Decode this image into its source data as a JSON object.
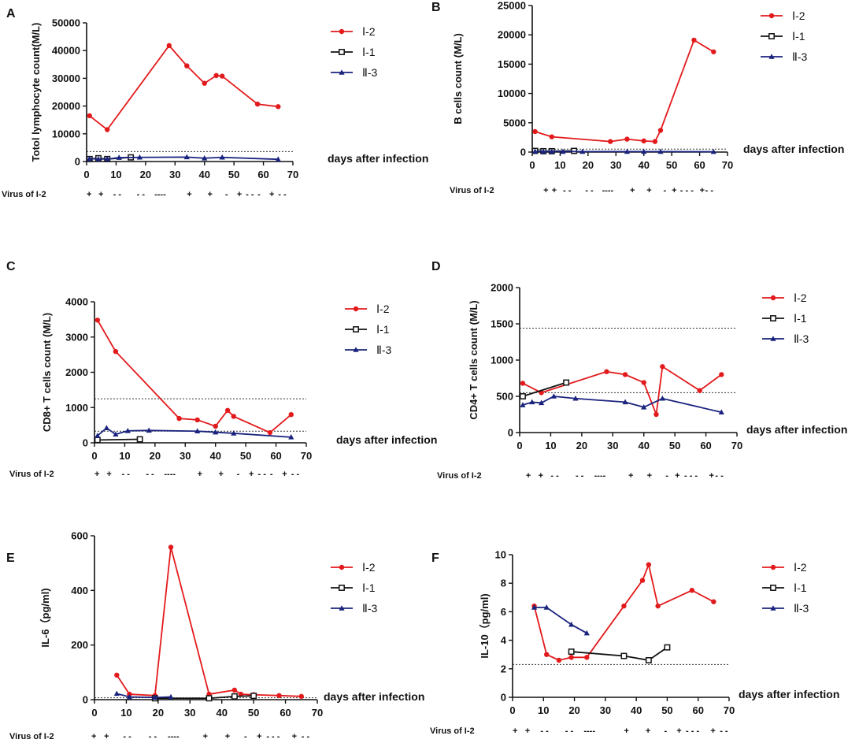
{
  "chart_data": [
    {
      "id": "A",
      "type": "line",
      "letter": "A",
      "ylabel": "Totol lymphocyte count(M/L)",
      "xlabel": "days after infection",
      "xlim": [
        0,
        70
      ],
      "ylim": [
        0,
        50000
      ],
      "xticks": [
        0,
        10,
        20,
        30,
        40,
        50,
        60,
        70
      ],
      "yticks": [
        0,
        10000,
        20000,
        30000,
        40000,
        50000
      ],
      "ytick_labels": [
        "0",
        "10000",
        "20000",
        "30000",
        "40000",
        "50000"
      ],
      "reference_lines": [
        3600
      ],
      "virus_label": "Virus of I-2",
      "virus_marks": [
        {
          "day": 0,
          "text": "+"
        },
        {
          "day": 4,
          "text": "+"
        },
        {
          "day": 9,
          "text": "- -"
        },
        {
          "day": 17,
          "text": "- -"
        },
        {
          "day": 23,
          "text": "----"
        },
        {
          "day": 34,
          "text": "+"
        },
        {
          "day": 41,
          "text": "+"
        },
        {
          "day": 47,
          "text": "-"
        },
        {
          "day": 51,
          "text": "+"
        },
        {
          "day": 54,
          "text": "- -"
        },
        {
          "day": 58,
          "text": "-"
        },
        {
          "day": 62,
          "text": "+"
        },
        {
          "day": 65,
          "text": "- -"
        }
      ],
      "series": [
        {
          "name": "Ⅰ-2",
          "color": "#e31a1c",
          "marker": "circle",
          "x": [
            1,
            7,
            28,
            34,
            40,
            44,
            46,
            58,
            65
          ],
          "y": [
            16500,
            11500,
            41800,
            34500,
            28200,
            31000,
            30800,
            20700,
            19800
          ]
        },
        {
          "name": "Ⅰ-1",
          "color": "#111111",
          "marker": "square",
          "x": [
            1,
            4,
            7,
            15
          ],
          "y": [
            900,
            1200,
            900,
            1500
          ]
        },
        {
          "name": "Ⅱ-3",
          "color": "#1a237e",
          "marker": "triangle",
          "x": [
            1,
            4,
            7,
            11,
            18,
            34,
            40,
            46,
            65
          ],
          "y": [
            1000,
            900,
            900,
            1400,
            1500,
            1600,
            1200,
            1500,
            800
          ]
        }
      ]
    },
    {
      "id": "B",
      "type": "line",
      "letter": "B",
      "ylabel": "B cells count  (M/L)",
      "xlabel": "days after infection",
      "xlim": [
        0,
        70
      ],
      "ylim": [
        0,
        25000
      ],
      "xticks": [
        0,
        10,
        20,
        30,
        40,
        50,
        60,
        70
      ],
      "yticks": [
        0,
        5000,
        10000,
        15000,
        20000,
        25000
      ],
      "ytick_labels": [
        "0",
        "5000",
        "10000",
        "15000",
        "20000",
        "25000"
      ],
      "reference_lines": [
        500
      ],
      "virus_label": "Virus of I-2",
      "virus_marks": [
        {
          "day": 4,
          "text": "+"
        },
        {
          "day": 7,
          "text": "+"
        },
        {
          "day": 11,
          "text": "- -"
        },
        {
          "day": 19,
          "text": "- -"
        },
        {
          "day": 25,
          "text": "----"
        },
        {
          "day": 35,
          "text": "+"
        },
        {
          "day": 41,
          "text": "+"
        },
        {
          "day": 47,
          "text": "-"
        },
        {
          "day": 50,
          "text": "+"
        },
        {
          "day": 53,
          "text": "- - -"
        },
        {
          "day": 60,
          "text": "+"
        },
        {
          "day": 62,
          "text": "- -"
        }
      ],
      "series": [
        {
          "name": "Ⅰ-2",
          "color": "#e31a1c",
          "marker": "circle",
          "x": [
            1,
            7,
            28,
            34,
            40,
            44,
            46,
            58,
            65
          ],
          "y": [
            3500,
            2600,
            1800,
            2200,
            1900,
            1800,
            3700,
            19100,
            17100
          ]
        },
        {
          "name": "Ⅰ-1",
          "color": "#111111",
          "marker": "square",
          "x": [
            1,
            4,
            7,
            15
          ],
          "y": [
            200,
            150,
            150,
            200
          ]
        },
        {
          "name": "Ⅱ-3",
          "color": "#1a237e",
          "marker": "triangle",
          "x": [
            1,
            4,
            7,
            11,
            18,
            34,
            40,
            46,
            65
          ],
          "y": [
            100,
            100,
            100,
            80,
            80,
            80,
            80,
            80,
            50
          ]
        }
      ]
    },
    {
      "id": "C",
      "type": "line",
      "letter": "C",
      "ylabel": "CD8+ T cells count (M/L)",
      "xlabel": "days after infection",
      "xlim": [
        0,
        70
      ],
      "ylim": [
        0,
        4000
      ],
      "xticks": [
        0,
        10,
        20,
        30,
        40,
        50,
        60,
        70
      ],
      "yticks": [
        0,
        1000,
        2000,
        3000,
        4000
      ],
      "ytick_labels": [
        "0",
        "1000",
        "2000",
        "3000",
        "4000"
      ],
      "reference_lines": [
        1250,
        330
      ],
      "virus_label": "Virus of I-2",
      "virus_marks": [
        {
          "day": 0,
          "text": "+"
        },
        {
          "day": 4,
          "text": "+"
        },
        {
          "day": 9,
          "text": "- -"
        },
        {
          "day": 17,
          "text": "- -"
        },
        {
          "day": 23,
          "text": "----"
        },
        {
          "day": 34,
          "text": "+"
        },
        {
          "day": 41,
          "text": "+"
        },
        {
          "day": 47,
          "text": "-"
        },
        {
          "day": 51,
          "text": "+"
        },
        {
          "day": 54,
          "text": "- -"
        },
        {
          "day": 58,
          "text": "-"
        },
        {
          "day": 62,
          "text": "+"
        },
        {
          "day": 65,
          "text": "- -"
        }
      ],
      "series": [
        {
          "name": "Ⅰ-2",
          "color": "#e31a1c",
          "marker": "circle",
          "x": [
            1,
            7,
            28,
            34,
            40,
            44,
            46,
            58,
            65
          ],
          "y": [
            3480,
            2590,
            690,
            650,
            470,
            920,
            750,
            290,
            800
          ]
        },
        {
          "name": "Ⅰ-1",
          "color": "#111111",
          "marker": "square",
          "x": [
            1,
            15
          ],
          "y": [
            80,
            100
          ]
        },
        {
          "name": "Ⅱ-3",
          "color": "#1a237e",
          "marker": "triangle",
          "x": [
            1,
            4,
            7,
            11,
            18,
            34,
            40,
            46,
            65
          ],
          "y": [
            200,
            420,
            240,
            340,
            350,
            330,
            300,
            270,
            160
          ]
        }
      ]
    },
    {
      "id": "D",
      "type": "line",
      "letter": "D",
      "ylabel": "CD4+ T cells count (M/L)",
      "xlabel": "days after infection",
      "xlim": [
        0,
        70
      ],
      "ylim": [
        0,
        2000
      ],
      "xticks": [
        0,
        10,
        20,
        30,
        40,
        50,
        60,
        70
      ],
      "yticks": [
        0,
        500,
        1000,
        1500,
        2000
      ],
      "ytick_labels": [
        "0",
        "500",
        "1000",
        "1500",
        "2000"
      ],
      "reference_lines": [
        1440,
        550
      ],
      "virus_label": "Virus of I-2",
      "virus_marks": [
        {
          "day": 2,
          "text": "+"
        },
        {
          "day": 6,
          "text": "+"
        },
        {
          "day": 10,
          "text": "- -"
        },
        {
          "day": 18,
          "text": "- -"
        },
        {
          "day": 24,
          "text": "----"
        },
        {
          "day": 35,
          "text": "+"
        },
        {
          "day": 41,
          "text": "+"
        },
        {
          "day": 47,
          "text": "-"
        },
        {
          "day": 50,
          "text": "+"
        },
        {
          "day": 53,
          "text": "- - -"
        },
        {
          "day": 61,
          "text": "+"
        },
        {
          "day": 63,
          "text": "- -"
        }
      ],
      "series": [
        {
          "name": "Ⅰ-2",
          "color": "#e31a1c",
          "marker": "circle",
          "x": [
            1,
            7,
            28,
            34,
            40,
            44,
            46,
            58,
            65
          ],
          "y": [
            680,
            550,
            840,
            800,
            690,
            250,
            910,
            580,
            800
          ]
        },
        {
          "name": "Ⅰ-1",
          "color": "#111111",
          "marker": "square",
          "x": [
            1,
            15
          ],
          "y": [
            500,
            690
          ]
        },
        {
          "name": "Ⅱ-3",
          "color": "#1a237e",
          "marker": "triangle",
          "x": [
            1,
            4,
            7,
            11,
            18,
            34,
            40,
            46,
            65
          ],
          "y": [
            380,
            420,
            410,
            500,
            470,
            420,
            350,
            470,
            280
          ]
        }
      ]
    },
    {
      "id": "E",
      "type": "line",
      "letter": "E",
      "ylabel": "IL-6（pg/ml)",
      "xlabel": "days after infection",
      "xlim": [
        0,
        70
      ],
      "ylim": [
        0,
        600
      ],
      "xticks": [
        0,
        10,
        20,
        30,
        40,
        50,
        60,
        70
      ],
      "yticks": [
        0,
        200,
        400,
        600
      ],
      "ytick_labels": [
        "0",
        "200",
        "400",
        "600"
      ],
      "reference_lines": [
        7
      ],
      "virus_label": "Virus of I-2",
      "virus_marks": [
        {
          "day": -1,
          "text": "+"
        },
        {
          "day": 3,
          "text": "+"
        },
        {
          "day": 9,
          "text": "- -"
        },
        {
          "day": 17,
          "text": "- -"
        },
        {
          "day": 23,
          "text": "----"
        },
        {
          "day": 34,
          "text": "+"
        },
        {
          "day": 41,
          "text": "+"
        },
        {
          "day": 47,
          "text": "-"
        },
        {
          "day": 51,
          "text": "+"
        },
        {
          "day": 54,
          "text": "- - -"
        },
        {
          "day": 62,
          "text": "+"
        },
        {
          "day": 65,
          "text": "- -"
        }
      ],
      "series": [
        {
          "name": "Ⅰ-2",
          "color": "#e31a1c",
          "marker": "circle",
          "x": [
            7,
            11,
            19,
            24,
            36,
            44,
            46,
            50,
            58,
            65
          ],
          "y": [
            90,
            20,
            15,
            558,
            20,
            35,
            20,
            18,
            15,
            12
          ]
        },
        {
          "name": "Ⅰ-1",
          "color": "#111111",
          "marker": "square",
          "x": [
            19,
            36,
            44,
            50
          ],
          "y": [
            5,
            5,
            12,
            14
          ]
        },
        {
          "name": "Ⅱ-3",
          "color": "#1a237e",
          "marker": "triangle",
          "x": [
            7,
            11,
            19,
            24
          ],
          "y": [
            22,
            10,
            8,
            10
          ]
        }
      ]
    },
    {
      "id": "F",
      "type": "line",
      "letter": "F",
      "ylabel": "IL-10（pg/ml)",
      "xlabel": "days after infection",
      "xlim": [
        0,
        70
      ],
      "ylim": [
        0,
        10
      ],
      "xticks": [
        0,
        10,
        20,
        30,
        40,
        50,
        60,
        70
      ],
      "yticks": [
        0,
        2,
        4,
        6,
        8,
        10
      ],
      "ytick_labels": [
        "0",
        "2",
        "4",
        "6",
        "8",
        "10"
      ],
      "reference_lines": [
        2.3
      ],
      "virus_label": "Virus of I-2",
      "virus_marks": [
        {
          "day": 0,
          "text": "+"
        },
        {
          "day": 4,
          "text": "+"
        },
        {
          "day": 9,
          "text": "- -"
        },
        {
          "day": 17,
          "text": "- -"
        },
        {
          "day": 23,
          "text": "----"
        },
        {
          "day": 36,
          "text": "+"
        },
        {
          "day": 43,
          "text": "+"
        },
        {
          "day": 49,
          "text": "-"
        },
        {
          "day": 53,
          "text": "+"
        },
        {
          "day": 56,
          "text": "- - -"
        },
        {
          "day": 64,
          "text": "+"
        },
        {
          "day": 67,
          "text": "- -"
        }
      ],
      "series": [
        {
          "name": "Ⅰ-2",
          "color": "#e31a1c",
          "marker": "circle",
          "x": [
            7,
            11,
            15,
            19,
            24,
            36,
            42,
            44,
            47,
            58,
            65
          ],
          "y": [
            6.4,
            3.0,
            2.6,
            2.8,
            2.8,
            6.4,
            8.2,
            9.3,
            6.4,
            7.5,
            6.7
          ]
        },
        {
          "name": "Ⅰ-1",
          "color": "#111111",
          "marker": "square",
          "x": [
            19,
            36,
            44,
            50
          ],
          "y": [
            3.2,
            2.9,
            2.6,
            3.5
          ]
        },
        {
          "name": "Ⅱ-3",
          "color": "#1a237e",
          "marker": "triangle",
          "x": [
            7,
            11,
            19,
            24
          ],
          "y": [
            6.3,
            6.3,
            5.1,
            4.5
          ]
        }
      ]
    }
  ]
}
